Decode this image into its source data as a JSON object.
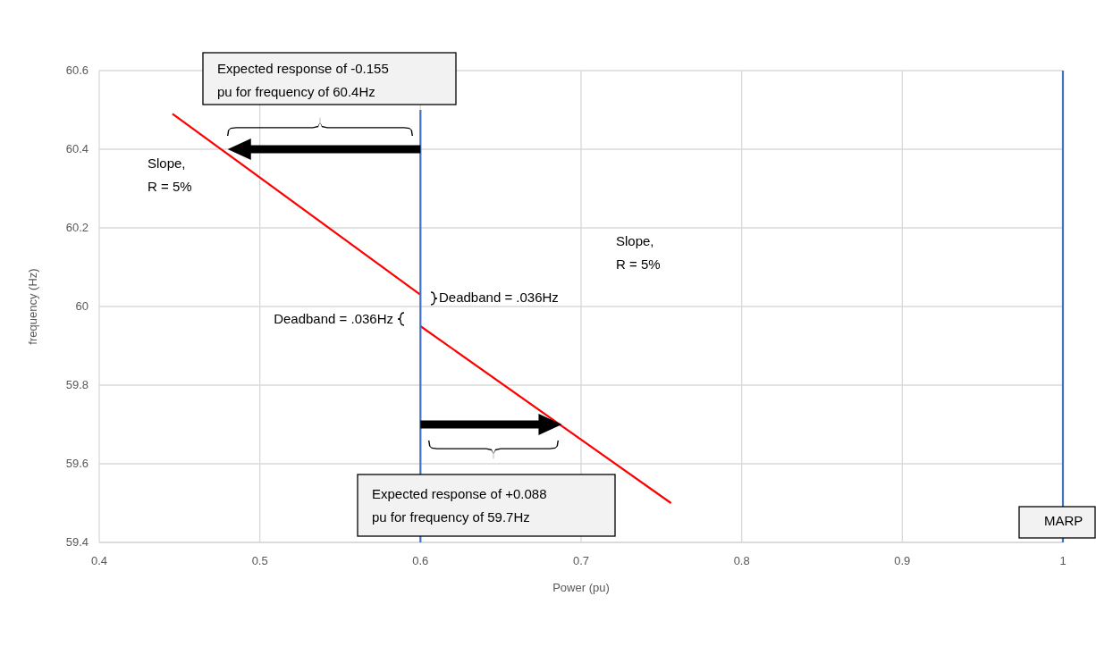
{
  "chart_data": {
    "type": "line",
    "xlabel": "Power (pu)",
    "ylabel": "frequency (Hz)",
    "xlim": [
      0.4,
      1
    ],
    "xticks": [
      0.4,
      0.5,
      0.6,
      0.7,
      0.8,
      0.9,
      1
    ],
    "ylim": [
      59.4,
      60.6
    ],
    "yticks": [
      59.4,
      59.6,
      59.8,
      60,
      60.2,
      60.4,
      60.6
    ],
    "grid": true,
    "marker": "none",
    "line_style": "solid",
    "series": [
      {
        "color": "#ff0000",
        "x": [
          0.4456,
          0.6
        ],
        "values": [
          60.49,
          60.03
        ]
      },
      {
        "color": "#ff0000",
        "x": [
          0.6,
          0.756
        ],
        "values": [
          59.95,
          59.5
        ]
      },
      {
        "color": "#4472c4",
        "x": [
          0.6,
          0.6
        ],
        "values": [
          59.4,
          60.5
        ]
      }
    ],
    "ref_lines": [
      {
        "axis": "x",
        "value": 1,
        "label": "MARP",
        "color": "#4472c4"
      }
    ],
    "annotations": [
      "Expected response of -0.155 pu for frequency of 60.4Hz",
      "Expected response of +0.088 pu for frequency of 59.7Hz",
      "Slope, R = 5%",
      "Slope, R = 5%",
      "Deadband = .036Hz",
      "Deadband = .036Hz"
    ]
  }
}
